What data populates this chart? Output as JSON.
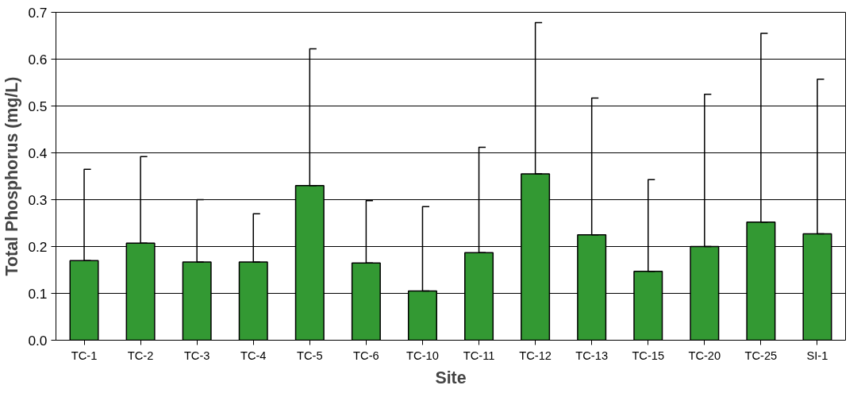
{
  "chart_data": {
    "type": "bar",
    "xlabel": "Site",
    "ylabel": "Total Phosphorus (mg/L)",
    "categories": [
      "TC-1",
      "TC-2",
      "TC-3",
      "TC-4",
      "TC-5",
      "TC-6",
      "TC-10",
      "TC-11",
      "TC-12",
      "TC-13",
      "TC-15",
      "TC-20",
      "TC-25",
      "SI-1"
    ],
    "values": [
      0.17,
      0.207,
      0.167,
      0.167,
      0.33,
      0.165,
      0.105,
      0.187,
      0.355,
      0.225,
      0.147,
      0.2,
      0.252,
      0.227
    ],
    "errors": [
      [
        0.17,
        0.365
      ],
      [
        0.207,
        0.392
      ],
      [
        0.167,
        0.3
      ],
      [
        0.167,
        0.27
      ],
      [
        0.33,
        0.622
      ],
      [
        0.165,
        0.298
      ],
      [
        0.105,
        0.285
      ],
      [
        0.187,
        0.412
      ],
      [
        0.355,
        0.678
      ],
      [
        0.225,
        0.517
      ],
      [
        0.147,
        0.343
      ],
      [
        0.2,
        0.525
      ],
      [
        0.252,
        0.655
      ],
      [
        0.227,
        0.557
      ]
    ],
    "color": "#339933",
    "ylim": [
      0,
      0.7
    ],
    "yticks": [
      {
        "value": 0,
        "label": "0.0"
      },
      0.1,
      0.2,
      0.3,
      0.4,
      0.5,
      0.6,
      0.7
    ],
    "grid": "y"
  }
}
